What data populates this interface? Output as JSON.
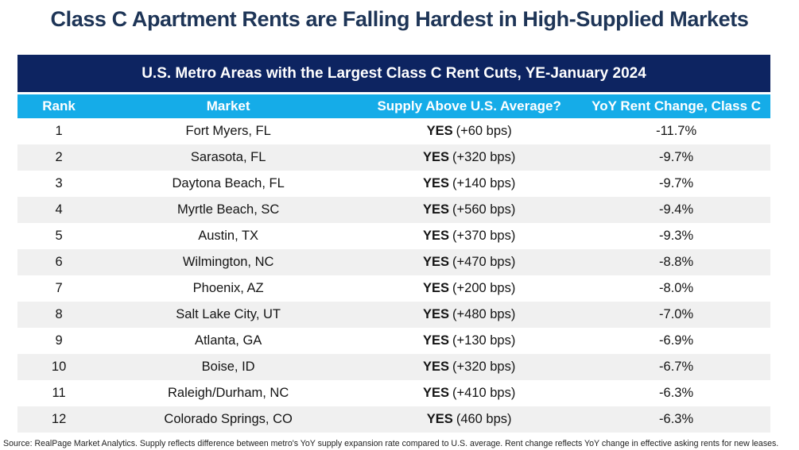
{
  "title": "Class C Apartment Rents are Falling Hardest in High-Supplied Markets",
  "table": {
    "header": "U.S. Metro Areas with the Largest Class C Rent Cuts, YE-January 2024",
    "columns": {
      "rank": "Rank",
      "market": "Market",
      "supply": "Supply Above U.S. Average?",
      "yoy": "YoY Rent Change, Class C"
    },
    "rows": [
      {
        "rank": "1",
        "market": "Fort Myers, FL",
        "supply_flag": "YES",
        "supply_note": "(+60 bps)",
        "rent_change": "-11.7%"
      },
      {
        "rank": "2",
        "market": "Sarasota, FL",
        "supply_flag": "YES",
        "supply_note": "(+320 bps)",
        "rent_change": "-9.7%"
      },
      {
        "rank": "3",
        "market": "Daytona Beach, FL",
        "supply_flag": "YES",
        "supply_note": "(+140 bps)",
        "rent_change": "-9.7%"
      },
      {
        "rank": "4",
        "market": "Myrtle Beach, SC",
        "supply_flag": "YES",
        "supply_note": "(+560 bps)",
        "rent_change": "-9.4%"
      },
      {
        "rank": "5",
        "market": "Austin, TX",
        "supply_flag": "YES",
        "supply_note": "(+370 bps)",
        "rent_change": "-9.3%"
      },
      {
        "rank": "6",
        "market": "Wilmington, NC",
        "supply_flag": "YES",
        "supply_note": "(+470 bps)",
        "rent_change": "-8.8%"
      },
      {
        "rank": "7",
        "market": "Phoenix, AZ",
        "supply_flag": "YES",
        "supply_note": "(+200 bps)",
        "rent_change": "-8.0%"
      },
      {
        "rank": "8",
        "market": "Salt Lake City, UT",
        "supply_flag": "YES",
        "supply_note": "(+480 bps)",
        "rent_change": "-7.0%"
      },
      {
        "rank": "9",
        "market": "Atlanta, GA",
        "supply_flag": "YES",
        "supply_note": "(+130 bps)",
        "rent_change": "-6.9%"
      },
      {
        "rank": "10",
        "market": "Boise, ID",
        "supply_flag": "YES",
        "supply_note": "(+320 bps)",
        "rent_change": "-6.7%"
      },
      {
        "rank": "11",
        "market": "Raleigh/Durham, NC",
        "supply_flag": "YES",
        "supply_note": "(+410 bps)",
        "rent_change": "-6.3%"
      },
      {
        "rank": "12",
        "market": "Colorado Springs, CO",
        "supply_flag": "YES",
        "supply_note": "(460 bps)",
        "rent_change": "-6.3%"
      }
    ]
  },
  "footer": "Source: RealPage Market Analytics. Supply reflects difference between metro's YoY supply expansion rate compared to U.S. average. Rent change reflects YoY change in effective asking rents for new leases.",
  "colors": {
    "navy_band": "#0D2461",
    "cyan_band": "#15ACE8",
    "row_alt": "#F0F0F0",
    "title_text": "#1E3557",
    "bottom_rule": "#4F4F4F"
  },
  "chart_data": {
    "type": "table",
    "title": "U.S. Metro Areas with the Largest Class C Rent Cuts, YE-January 2024",
    "categories": [
      "Fort Myers, FL",
      "Sarasota, FL",
      "Daytona Beach, FL",
      "Myrtle Beach, SC",
      "Austin, TX",
      "Wilmington, NC",
      "Phoenix, AZ",
      "Salt Lake City, UT",
      "Atlanta, GA",
      "Boise, ID",
      "Raleigh/Durham, NC",
      "Colorado Springs, CO"
    ],
    "series": [
      {
        "name": "Supply above U.S. average (bps)",
        "values": [
          60,
          320,
          140,
          560,
          370,
          470,
          200,
          480,
          130,
          320,
          410,
          460
        ]
      },
      {
        "name": "YoY rent change, Class C (%)",
        "values": [
          -11.7,
          -9.7,
          -9.7,
          -9.4,
          -9.3,
          -8.8,
          -8.0,
          -7.0,
          -6.9,
          -6.7,
          -6.3,
          -6.3
        ]
      }
    ],
    "legend_position": "none",
    "grid": false
  }
}
